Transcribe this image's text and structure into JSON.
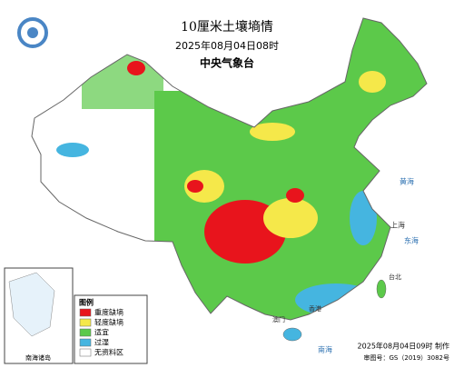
{
  "header": {
    "title": "10厘米土壤墒情",
    "datetime": "2025年08月04日08时",
    "issuer": "中央气象台"
  },
  "legend": {
    "title": "图例",
    "items": [
      {
        "label": "重度缺墒",
        "color": "#e8141c"
      },
      {
        "label": "轻度缺墒",
        "color": "#f5e84a"
      },
      {
        "label": "适宜",
        "color": "#5cc94a"
      },
      {
        "label": "过湿",
        "color": "#45b5e0"
      },
      {
        "label": "无资料区",
        "color": "#ffffff"
      }
    ]
  },
  "places": [
    "上海",
    "东海",
    "黄海",
    "台北",
    "香港",
    "澳门",
    "南海"
  ],
  "inset": {
    "label": "南海诸岛"
  },
  "footer": {
    "made": "2025年08月04日09时 制作",
    "approval": "审图号：GS（2019）3082号"
  }
}
